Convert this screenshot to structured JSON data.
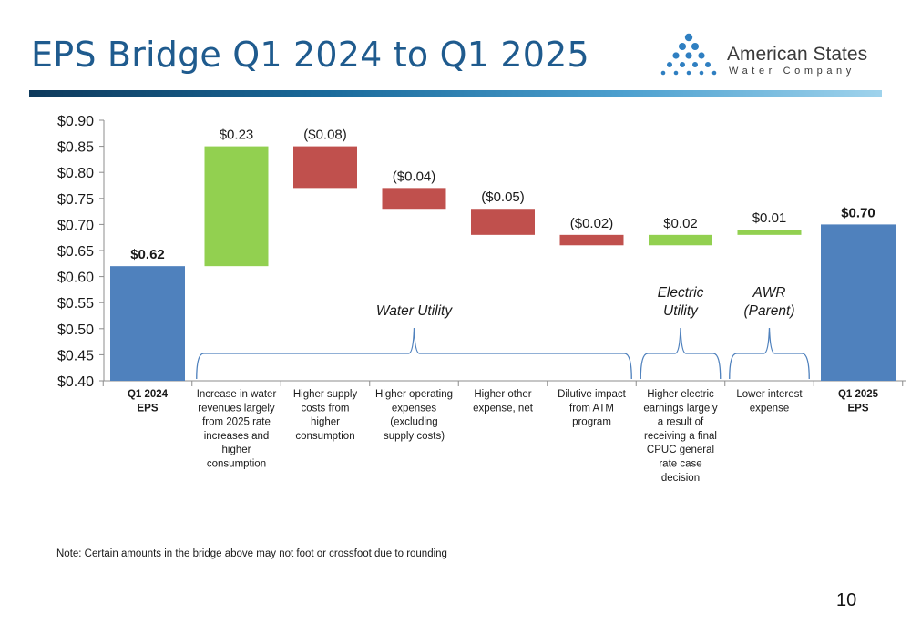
{
  "slide": {
    "title": "EPS Bridge Q1 2024 to Q1 2025",
    "note": "Note: Certain amounts in the bridge above may not foot or crossfoot due to rounding",
    "page_number": "10"
  },
  "logo": {
    "name": "American States",
    "subtitle": "Water Company",
    "dot_color": "#2f7fc1"
  },
  "colors": {
    "total": "#4f81bd",
    "increase": "#92d050",
    "decrease": "#c0504d",
    "brace": "#4f81bd"
  },
  "chart_data": {
    "type": "bar",
    "subtype": "waterfall",
    "title": "",
    "ylim": [
      0.4,
      0.9
    ],
    "yticks": [
      "$0.40",
      "$0.45",
      "$0.50",
      "$0.55",
      "$0.60",
      "$0.65",
      "$0.70",
      "$0.75",
      "$0.80",
      "$0.85",
      "$0.90"
    ],
    "grid": false,
    "bars": [
      {
        "category": [
          "Q1 2024",
          "EPS"
        ],
        "kind": "total",
        "start": 0.4,
        "end": 0.62,
        "label": "$0.62",
        "label_bold": true
      },
      {
        "category": [
          "Increase in water",
          "revenues largely",
          "from 2025 rate",
          "increases and",
          "higher",
          "consumption"
        ],
        "kind": "increase",
        "start": 0.62,
        "end": 0.85,
        "label": "$0.23"
      },
      {
        "category": [
          "Higher supply",
          "costs from",
          "higher",
          "consumption"
        ],
        "kind": "decrease",
        "start": 0.85,
        "end": 0.77,
        "label": "($0.08)"
      },
      {
        "category": [
          "Higher operating",
          "expenses",
          "(excluding",
          "supply costs)"
        ],
        "kind": "decrease",
        "start": 0.77,
        "end": 0.73,
        "label": "($0.04)"
      },
      {
        "category": [
          "Higher other",
          "expense, net"
        ],
        "kind": "decrease",
        "start": 0.73,
        "end": 0.68,
        "label": "($0.05)"
      },
      {
        "category": [
          "Dilutive impact",
          "from ATM",
          "program"
        ],
        "kind": "decrease",
        "start": 0.68,
        "end": 0.66,
        "label": "($0.02)"
      },
      {
        "category": [
          "Higher electric",
          "earnings largely",
          "a result of",
          "receiving a final",
          "CPUC general",
          "rate case",
          "decision"
        ],
        "kind": "increase",
        "start": 0.66,
        "end": 0.68,
        "label": "$0.02"
      },
      {
        "category": [
          "Lower interest",
          "expense"
        ],
        "kind": "increase",
        "start": 0.68,
        "end": 0.69,
        "label": "$0.01"
      },
      {
        "category": [
          "Q1 2025",
          "EPS"
        ],
        "kind": "total",
        "start": 0.4,
        "end": 0.7,
        "label": "$0.70",
        "label_bold": true
      }
    ],
    "groups": [
      {
        "label": [
          "Water Utility"
        ],
        "from_bar": 1,
        "to_bar": 5
      },
      {
        "label": [
          "Electric",
          "Utility"
        ],
        "from_bar": 6,
        "to_bar": 6
      },
      {
        "label": [
          "AWR",
          "(Parent)"
        ],
        "from_bar": 7,
        "to_bar": 7
      }
    ]
  }
}
